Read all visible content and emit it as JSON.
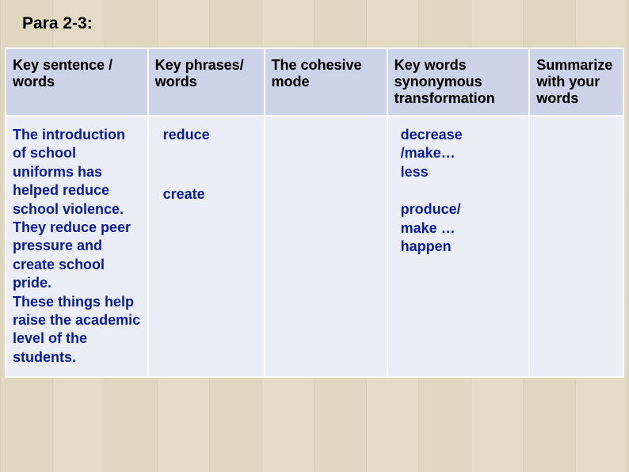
{
  "title": "Para 2-3:",
  "table": {
    "headers": [
      "Key sentence / words",
      "Key phrases/ words",
      "The cohesive mode",
      "Key words synonymous transformation",
      "Summarize with your words"
    ],
    "row": {
      "key_sentence": "The introduction of school uniforms has helped reduce school violence.\nThey reduce peer pressure and create school pride.\nThese things help raise the academic level of the students.",
      "phrases": [
        "reduce",
        "create"
      ],
      "cohesive": "",
      "synonyms": [
        "decrease\n/make…\nless",
        "produce/\nmake …\nhappen"
      ],
      "summary": ""
    }
  },
  "colors": {
    "header_bg": "#cdd3e9",
    "cell_bg": "#ebeef7",
    "text_blue": "#0a1b9a",
    "text_black": "#000000",
    "page_bg": "#e8e0cc"
  }
}
